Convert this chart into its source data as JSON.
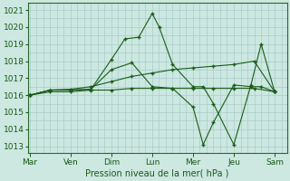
{
  "title": "Pression niveau de la mer( hPa )",
  "ylabel_ticks": [
    1013,
    1014,
    1015,
    1016,
    1017,
    1018,
    1019,
    1020,
    1021
  ],
  "ylim": [
    1012.6,
    1021.4
  ],
  "day_labels": [
    "Mar",
    "Ven",
    "Dim",
    "Lun",
    "Mer",
    "Jeu",
    "Sam"
  ],
  "day_positions": [
    0,
    1,
    2,
    3,
    4,
    5,
    6
  ],
  "xlim": [
    -0.05,
    6.3
  ],
  "background_color": "#cce8e0",
  "grid_color": "#aacccc",
  "line_color": "#1a5c1a",
  "lines": [
    {
      "x": [
        0.0,
        0.5,
        1.0,
        1.5,
        2.0,
        2.33,
        2.67,
        3.0,
        3.17,
        3.5,
        4.0,
        4.25,
        4.5,
        5.0,
        5.42,
        5.67,
        6.0
      ],
      "y": [
        1016.0,
        1016.3,
        1016.3,
        1016.35,
        1018.1,
        1019.3,
        1019.4,
        1020.8,
        1020.0,
        1017.8,
        1016.5,
        1016.5,
        1015.5,
        1013.1,
        1016.6,
        1019.0,
        1016.2
      ]
    },
    {
      "x": [
        0.0,
        0.5,
        1.0,
        1.5,
        2.0,
        2.5,
        3.0,
        3.5,
        4.0,
        4.5,
        5.0,
        5.5,
        6.0
      ],
      "y": [
        1016.0,
        1016.2,
        1016.2,
        1016.3,
        1016.3,
        1016.4,
        1016.4,
        1016.4,
        1016.4,
        1016.4,
        1016.4,
        1016.4,
        1016.2
      ]
    },
    {
      "x": [
        0.0,
        0.5,
        1.0,
        1.5,
        2.0,
        2.5,
        3.0,
        3.5,
        4.0,
        4.5,
        5.0,
        5.5,
        6.0
      ],
      "y": [
        1016.0,
        1016.3,
        1016.35,
        1016.5,
        1016.8,
        1017.1,
        1017.3,
        1017.5,
        1017.6,
        1017.7,
        1017.8,
        1018.0,
        1016.2
      ]
    },
    {
      "x": [
        0.0,
        0.5,
        1.0,
        1.5,
        2.0,
        2.5,
        3.0,
        3.5,
        4.0,
        4.25,
        4.5,
        5.0,
        5.42,
        5.67,
        6.0
      ],
      "y": [
        1016.0,
        1016.3,
        1016.3,
        1016.35,
        1017.5,
        1017.9,
        1016.5,
        1016.4,
        1015.3,
        1013.1,
        1014.4,
        1016.6,
        1016.5,
        1016.5,
        1016.2
      ]
    }
  ]
}
